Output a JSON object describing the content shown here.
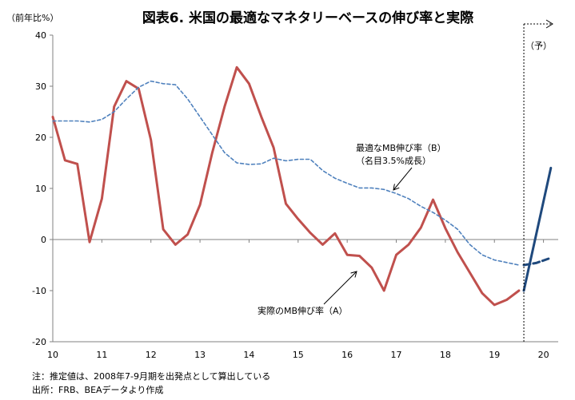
{
  "chart_data": {
    "type": "line",
    "title": "図表6. 米国の最適なマネタリーベースの伸び率と実際",
    "ylabel": "（前年比%）",
    "xlabel": "",
    "ylim": [
      -20,
      40
    ],
    "xlim": [
      10,
      20.3
    ],
    "yticks": [
      40,
      30,
      20,
      10,
      0,
      -10,
      -20
    ],
    "xticks": [
      10,
      11,
      12,
      13,
      14,
      15,
      16,
      17,
      18,
      19,
      20
    ],
    "grid": false,
    "forecast_label": "（予）",
    "forecast_start": 19.6,
    "series": [
      {
        "name": "実際のMB伸び率（A）",
        "color": "#c0504d",
        "style": "solid",
        "x": [
          10.0,
          10.25,
          10.5,
          10.75,
          11.0,
          11.25,
          11.5,
          11.75,
          12.0,
          12.25,
          12.5,
          12.75,
          13.0,
          13.25,
          13.5,
          13.75,
          14.0,
          14.25,
          14.5,
          14.75,
          15.0,
          15.25,
          15.5,
          15.75,
          16.0,
          16.25,
          16.5,
          16.75,
          17.0,
          17.25,
          17.5,
          17.75,
          18.0,
          18.25,
          18.5,
          18.75,
          19.0,
          19.25,
          19.5
        ],
        "values": [
          24,
          15.5,
          14.8,
          -0.5,
          8,
          26,
          31,
          29.5,
          19.5,
          2,
          -1,
          1,
          6.8,
          17,
          26,
          33.7,
          30.5,
          24,
          18,
          7,
          4,
          1.3,
          -1,
          1.2,
          -3,
          -3.2,
          -5.5,
          -10,
          -3,
          -1,
          2.3,
          7.8,
          2.2,
          -2.5,
          -6.5,
          -10.5,
          -12.8,
          -11.8,
          -10
        ]
      },
      {
        "name": "最適なMB伸び率（B）（名目3.5%成長）",
        "color": "#4f81bd",
        "style": "dashed",
        "x": [
          10.0,
          10.25,
          10.5,
          10.75,
          11.0,
          11.25,
          11.5,
          11.75,
          12.0,
          12.25,
          12.5,
          12.75,
          13.0,
          13.25,
          13.5,
          13.75,
          14.0,
          14.25,
          14.5,
          14.75,
          15.0,
          15.25,
          15.5,
          15.75,
          16.0,
          16.25,
          16.5,
          16.75,
          17.0,
          17.25,
          17.5,
          17.75,
          18.0,
          18.25,
          18.5,
          18.75,
          19.0,
          19.25,
          19.5
        ],
        "values": [
          23.2,
          23.2,
          23.2,
          23,
          23.5,
          25,
          27.5,
          29.8,
          31,
          30.5,
          30.3,
          27.5,
          24,
          20.5,
          17,
          15,
          14.7,
          14.8,
          15.9,
          15.4,
          15.7,
          15.7,
          13.5,
          12,
          11,
          10.1,
          10.1,
          9.8,
          9,
          8,
          6.5,
          5.3,
          3.8,
          2,
          -1,
          -3,
          -4,
          -4.5,
          -5
        ]
      },
      {
        "name": "実際のMB伸び率（予）",
        "color": "#1f497d",
        "style": "solid",
        "x": [
          19.6,
          20.15
        ],
        "values": [
          -10,
          14
        ]
      },
      {
        "name": "最適なMB伸び率（予）",
        "color": "#1f497d",
        "style": "dashed",
        "x": [
          19.6,
          19.85,
          20.15
        ],
        "values": [
          -5,
          -4.6,
          -3.6
        ]
      }
    ],
    "annotations": {
      "optimal_line1": "最適なMB伸び率（B）",
      "optimal_line2": "（名目3.5%成長）",
      "actual": "実際のMB伸び率（A）"
    }
  },
  "footer": {
    "note": "注：推定値は、2008年7-9月期を出発点として算出している",
    "source": "出所：FRB、BEAデータより作成"
  }
}
